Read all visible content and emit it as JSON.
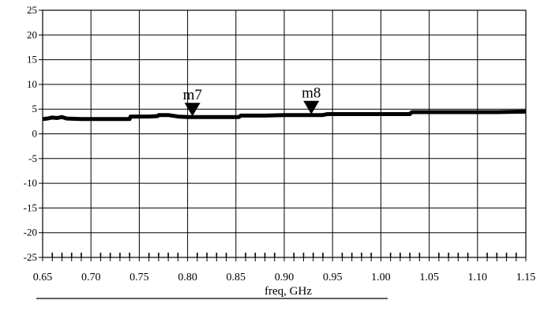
{
  "chart_data": {
    "type": "line",
    "xlabel": "freq, GHz",
    "ylabel": "",
    "xlim": [
      0.65,
      1.15
    ],
    "ylim": [
      -25,
      25
    ],
    "grid": true,
    "xticks": [
      "0.65",
      "0.70",
      "0.75",
      "0.80",
      "0.85",
      "0.90",
      "0.95",
      "1.00",
      "1.05",
      "1.10",
      "1.15"
    ],
    "yticks": [
      "25",
      "20",
      "15",
      "10",
      "5",
      "0",
      "-5",
      "-10",
      "-15",
      "-20",
      "-25"
    ],
    "series": [
      {
        "x": [
          0.65,
          0.655,
          0.66,
          0.665,
          0.67,
          0.675,
          0.69,
          0.72,
          0.74,
          0.741,
          0.76,
          0.769,
          0.77,
          0.78,
          0.79,
          0.8,
          0.82,
          0.84,
          0.853,
          0.855,
          0.88,
          0.9,
          0.94,
          0.945,
          0.96,
          0.98,
          1.0,
          1.03,
          1.032,
          1.06,
          1.09,
          1.12,
          1.15
        ],
        "y": [
          3.0,
          3.1,
          3.3,
          3.2,
          3.4,
          3.1,
          3.0,
          3.0,
          3.0,
          3.5,
          3.5,
          3.6,
          3.8,
          3.8,
          3.5,
          3.4,
          3.4,
          3.4,
          3.4,
          3.7,
          3.7,
          3.8,
          3.8,
          4.0,
          4.0,
          4.0,
          4.0,
          4.0,
          4.4,
          4.4,
          4.4,
          4.4,
          4.5
        ]
      }
    ],
    "markers": [
      {
        "label": "m7",
        "x": 0.805,
        "y": 3.4
      },
      {
        "label": "m8",
        "x": 0.928,
        "y": 3.8
      }
    ]
  }
}
